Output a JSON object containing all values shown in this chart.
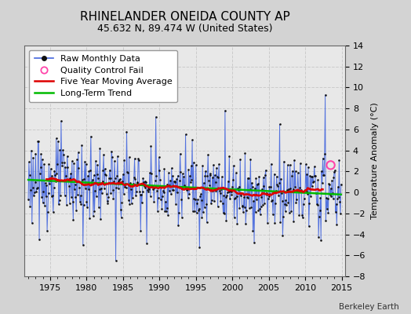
{
  "title": "RHINELANDER ONEIDA COUNTY AP",
  "subtitle": "45.632 N, 89.474 W (United States)",
  "ylabel": "Temperature Anomaly (°C)",
  "watermark": "Berkeley Earth",
  "start_year": 1972,
  "end_year": 2015,
  "ylim": [
    -8,
    14
  ],
  "yticks": [
    -8,
    -6,
    -4,
    -2,
    0,
    2,
    4,
    6,
    8,
    10,
    12,
    14
  ],
  "background_color": "#d3d3d3",
  "plot_bg_color": "#e8e8e8",
  "raw_line_color": "#4466dd",
  "raw_marker_color": "#111111",
  "moving_avg_color": "#dd0000",
  "trend_color": "#00bb00",
  "qc_fail_color": "#ff44aa",
  "legend_font_size": 8,
  "title_font_size": 11,
  "subtitle_font_size": 9,
  "xticks": [
    1975,
    1980,
    1985,
    1990,
    1995,
    2000,
    2005,
    2010,
    2015
  ],
  "qc_x": 2013.5,
  "qc_y": 2.6
}
